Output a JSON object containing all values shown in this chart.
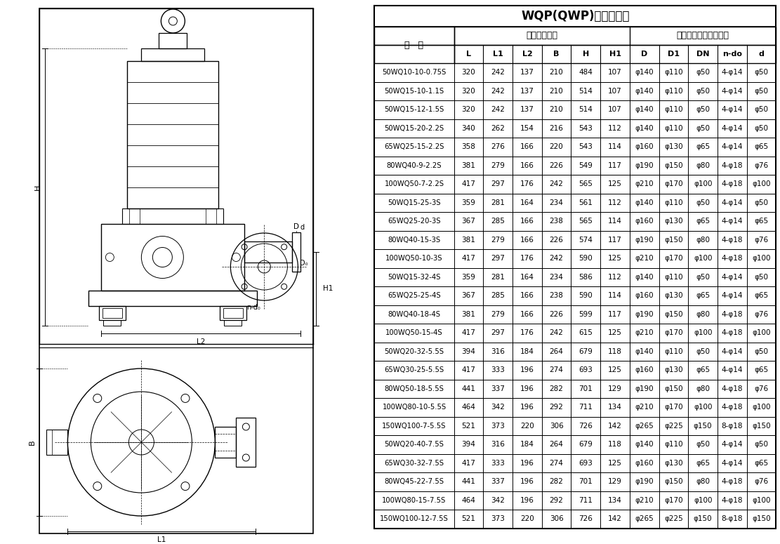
{
  "title": "WQP(QWP)安装尺寸表",
  "subtitle1": "外形安装尺寸",
  "subtitle2": "泵出口法兰及连接尺寸",
  "col_header": "型   号",
  "columns": [
    "L",
    "L1",
    "L2",
    "B",
    "H",
    "H1",
    "D",
    "D1",
    "DN",
    "n-do",
    "d"
  ],
  "rows": [
    [
      "50WQ10-10-0.75S",
      "320",
      "242",
      "137",
      "210",
      "484",
      "107",
      "φ140",
      "φ110",
      "φ50",
      "4-φ14",
      "φ50"
    ],
    [
      "50WQ15-10-1.1S",
      "320",
      "242",
      "137",
      "210",
      "514",
      "107",
      "φ140",
      "φ110",
      "φ50",
      "4-φ14",
      "φ50"
    ],
    [
      "50WQ15-12-1.5S",
      "320",
      "242",
      "137",
      "210",
      "514",
      "107",
      "φ140",
      "φ110",
      "φ50",
      "4-φ14",
      "φ50"
    ],
    [
      "50WQ15-20-2.2S",
      "340",
      "262",
      "154",
      "216",
      "543",
      "112",
      "φ140",
      "φ110",
      "φ50",
      "4-φ14",
      "φ50"
    ],
    [
      "65WQ25-15-2.2S",
      "358",
      "276",
      "166",
      "220",
      "543",
      "114",
      "φ160",
      "φ130",
      "φ65",
      "4-φ14",
      "φ65"
    ],
    [
      "80WQ40-9-2.2S",
      "381",
      "279",
      "166",
      "226",
      "549",
      "117",
      "φ190",
      "φ150",
      "φ80",
      "4-φ18",
      "φ76"
    ],
    [
      "100WQ50-7-2.2S",
      "417",
      "297",
      "176",
      "242",
      "565",
      "125",
      "φ210",
      "φ170",
      "φ100",
      "4-φ18",
      "φ100"
    ],
    [
      "50WQ15-25-3S",
      "359",
      "281",
      "164",
      "234",
      "561",
      "112",
      "φ140",
      "φ110",
      "φ50",
      "4-φ14",
      "φ50"
    ],
    [
      "65WQ25-20-3S",
      "367",
      "285",
      "166",
      "238",
      "565",
      "114",
      "φ160",
      "φ130",
      "φ65",
      "4-φ14",
      "φ65"
    ],
    [
      "80WQ40-15-3S",
      "381",
      "279",
      "166",
      "226",
      "574",
      "117",
      "φ190",
      "φ150",
      "φ80",
      "4-φ18",
      "φ76"
    ],
    [
      "100WQ50-10-3S",
      "417",
      "297",
      "176",
      "242",
      "590",
      "125",
      "φ210",
      "φ170",
      "φ100",
      "4-φ18",
      "φ100"
    ],
    [
      "50WQ15-32-4S",
      "359",
      "281",
      "164",
      "234",
      "586",
      "112",
      "φ140",
      "φ110",
      "φ50",
      "4-φ14",
      "φ50"
    ],
    [
      "65WQ25-25-4S",
      "367",
      "285",
      "166",
      "238",
      "590",
      "114",
      "φ160",
      "φ130",
      "φ65",
      "4-φ14",
      "φ65"
    ],
    [
      "80WQ40-18-4S",
      "381",
      "279",
      "166",
      "226",
      "599",
      "117",
      "φ190",
      "φ150",
      "φ80",
      "4-φ18",
      "φ76"
    ],
    [
      "100WQ50-15-4S",
      "417",
      "297",
      "176",
      "242",
      "615",
      "125",
      "φ210",
      "φ170",
      "φ100",
      "4-φ18",
      "φ100"
    ],
    [
      "50WQ20-32-5.5S",
      "394",
      "316",
      "184",
      "264",
      "679",
      "118",
      "φ140",
      "φ110",
      "φ50",
      "4-φ14",
      "φ50"
    ],
    [
      "65WQ30-25-5.5S",
      "417",
      "333",
      "196",
      "274",
      "693",
      "125",
      "φ160",
      "φ130",
      "φ65",
      "4-φ14",
      "φ65"
    ],
    [
      "80WQ50-18-5.5S",
      "441",
      "337",
      "196",
      "282",
      "701",
      "129",
      "φ190",
      "φ150",
      "φ80",
      "4-φ18",
      "φ76"
    ],
    [
      "100WQ80-10-5.5S",
      "464",
      "342",
      "196",
      "292",
      "711",
      "134",
      "φ210",
      "φ170",
      "φ100",
      "4-φ18",
      "φ100"
    ],
    [
      "150WQ100-7-5.5S",
      "521",
      "373",
      "220",
      "306",
      "726",
      "142",
      "φ265",
      "φ225",
      "φ150",
      "8-φ18",
      "φ150"
    ],
    [
      "50WQ20-40-7.5S",
      "394",
      "316",
      "184",
      "264",
      "679",
      "118",
      "φ140",
      "φ110",
      "φ50",
      "4-φ14",
      "φ50"
    ],
    [
      "65WQ30-32-7.5S",
      "417",
      "333",
      "196",
      "274",
      "693",
      "125",
      "φ160",
      "φ130",
      "φ65",
      "4-φ14",
      "φ65"
    ],
    [
      "80WQ45-22-7.5S",
      "441",
      "337",
      "196",
      "282",
      "701",
      "129",
      "φ190",
      "φ150",
      "φ80",
      "4-φ18",
      "φ76"
    ],
    [
      "100WQ80-15-7.5S",
      "464",
      "342",
      "196",
      "292",
      "711",
      "134",
      "φ210",
      "φ170",
      "φ100",
      "4-φ18",
      "φ100"
    ],
    [
      "150WQ100-12-7.5S",
      "521",
      "373",
      "220",
      "306",
      "726",
      "142",
      "φ265",
      "φ225",
      "φ150",
      "8-φ18",
      "φ150"
    ]
  ],
  "bg_color": "#ffffff",
  "line_color": "#000000",
  "text_color": "#000000"
}
